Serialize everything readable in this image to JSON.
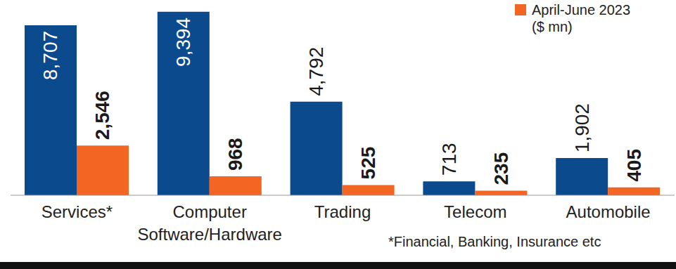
{
  "chart_data": {
    "type": "bar",
    "subtitle": "($ mn)",
    "categories": [
      "Services*",
      "Computer Software/Hardware",
      "Trading",
      "Telecom",
      "Automobile"
    ],
    "series": [
      {
        "color": "#0c4a8e",
        "values": [
          8707,
          9394,
          4792,
          713,
          1902
        ],
        "value_labels": [
          "8,707",
          "9,394",
          "4,792",
          "713",
          "1,902"
        ]
      },
      {
        "name": "April-June 2023",
        "color": "#f26522",
        "values": [
          2546,
          968,
          525,
          235,
          405
        ],
        "value_labels": [
          "2,546",
          "968",
          "525",
          "235",
          "405"
        ]
      }
    ],
    "ylim": [
      0,
      10000
    ],
    "data_labels": true,
    "tick_labels": "x",
    "legend": "top-right",
    "grid": false,
    "annotations": [
      "*Financial, Banking, Insurance etc"
    ]
  }
}
